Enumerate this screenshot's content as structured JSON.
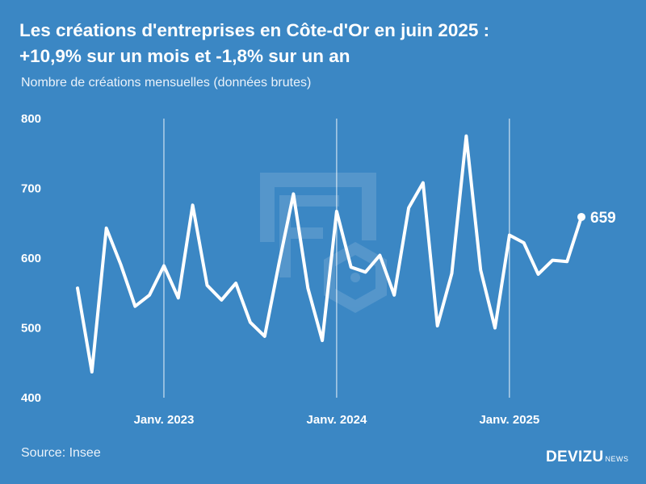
{
  "header": {
    "title_line1": "Les créations d'entreprises en Côte-d'Or en juin 2025 :",
    "title_line2": "+10,9% sur un mois et -1,8% sur un an",
    "subtitle": "Nombre de créations mensuelles (données brutes)"
  },
  "footer": {
    "source": "Source: Insee",
    "brand_main": "DEVIZU",
    "brand_sub": "NEWS"
  },
  "colors": {
    "background": "#3b87c4",
    "line": "#ffffff"
  },
  "chart_data": {
    "type": "line",
    "title": "Les créations d'entreprises en Côte-d'Or en juin 2025 : +10,9% sur un mois et -1,8% sur un an",
    "subtitle": "Nombre de créations mensuelles (données brutes)",
    "xlabel": "",
    "ylabel": "",
    "ylim": [
      400,
      800
    ],
    "yticks": [
      400,
      500,
      600,
      700,
      800
    ],
    "x_start": "2022-07",
    "x_end": "2025-06",
    "x": [
      "2022-07",
      "2022-08",
      "2022-09",
      "2022-10",
      "2022-11",
      "2022-12",
      "2023-01",
      "2023-02",
      "2023-03",
      "2023-04",
      "2023-05",
      "2023-06",
      "2023-07",
      "2023-08",
      "2023-09",
      "2023-10",
      "2023-11",
      "2023-12",
      "2024-01",
      "2024-02",
      "2024-03",
      "2024-04",
      "2024-05",
      "2024-06",
      "2024-07",
      "2024-08",
      "2024-09",
      "2024-10",
      "2024-11",
      "2024-12",
      "2025-01",
      "2025-02",
      "2025-03",
      "2025-04",
      "2025-05",
      "2025-06"
    ],
    "values": [
      557,
      437,
      643,
      591,
      531,
      547,
      589,
      543,
      676,
      561,
      540,
      564,
      508,
      488,
      593,
      692,
      557,
      482,
      667,
      587,
      580,
      604,
      547,
      672,
      708,
      503,
      578,
      775,
      583,
      500,
      633,
      622,
      577,
      597,
      595,
      659
    ],
    "xtick_labels": [
      {
        "label": "Janv. 2023",
        "x": "2023-01"
      },
      {
        "label": "Janv. 2024",
        "x": "2024-01"
      },
      {
        "label": "Janv. 2025",
        "x": "2025-01"
      }
    ],
    "end_label": "659",
    "grid": false,
    "legend": "none"
  }
}
